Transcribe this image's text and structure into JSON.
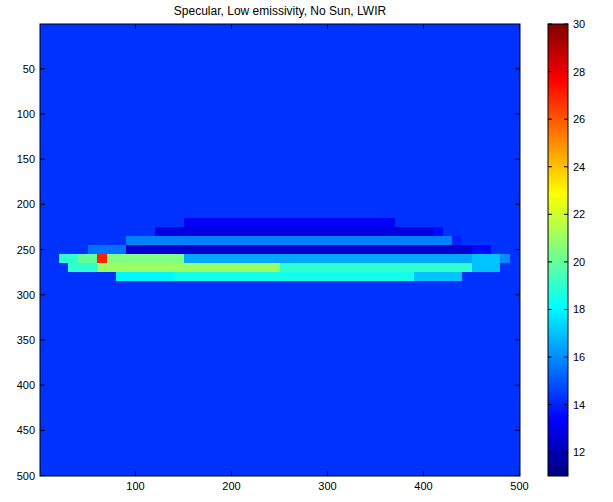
{
  "chart_data": {
    "type": "heatmap",
    "title": "Specular, Low emissivity, No Sun, LWIR",
    "x_edges": [
      0.5,
      10,
      20,
      30,
      40,
      50,
      60,
      70,
      80,
      90,
      100,
      110,
      120,
      130,
      140,
      150,
      160,
      170,
      180,
      190,
      200,
      210,
      220,
      230,
      240,
      250,
      260,
      270,
      280,
      290,
      300,
      310,
      320,
      330,
      340,
      350,
      360,
      370,
      380,
      390,
      400,
      410,
      420,
      430,
      440,
      450,
      460,
      470,
      480,
      490,
      500.5
    ],
    "y_edges": [
      0.5,
      215,
      225,
      235,
      245,
      255,
      265,
      275,
      285,
      500.5
    ],
    "cells": [
      [
        14.3,
        14.3,
        14.3,
        14.3,
        14.3,
        14.3,
        14.3,
        14.3,
        14.3,
        14.3,
        14.3,
        14.3,
        14.3,
        14.3,
        14.3,
        14.3,
        14.3,
        14.3,
        14.3,
        14.3,
        14.3,
        14.3,
        14.3,
        14.3,
        14.3,
        14.3,
        14.3,
        14.3,
        14.3,
        14.3,
        14.3,
        14.3,
        14.3,
        14.3,
        14.3,
        14.3,
        14.3,
        14.3,
        14.3,
        14.3,
        14.3,
        14.3,
        14.3,
        14.3,
        14.3,
        14.3,
        14.3,
        14.3,
        14.3,
        14.3
      ],
      [
        14.3,
        14.3,
        14.3,
        14.3,
        14.3,
        14.3,
        14.3,
        14.3,
        14.3,
        14.3,
        14.3,
        14.3,
        14.3,
        14.3,
        14.3,
        13.2,
        13.2,
        13.2,
        13.2,
        13.2,
        13.2,
        13.2,
        13.2,
        13.2,
        13.2,
        13.2,
        13.2,
        13.2,
        13.2,
        13.2,
        13.2,
        13.2,
        13.2,
        13.2,
        13.2,
        13.2,
        13.2,
        14.3,
        14.3,
        14.3,
        14.3,
        14.3,
        14.3,
        14.3,
        14.3,
        14.3,
        14.3,
        14.3,
        14.3,
        14.3
      ],
      [
        14.3,
        14.3,
        14.3,
        14.3,
        14.3,
        14.3,
        14.3,
        14.3,
        14.3,
        14.3,
        14.3,
        14.3,
        12.8,
        12.8,
        12.8,
        12.8,
        12.8,
        12.8,
        12.8,
        12.8,
        12.8,
        12.8,
        12.8,
        12.8,
        12.8,
        12.8,
        12.8,
        12.8,
        12.8,
        12.8,
        12.8,
        12.8,
        12.8,
        12.8,
        12.8,
        12.8,
        12.8,
        12.8,
        12.8,
        12.8,
        12.8,
        13.5,
        14.3,
        14.3,
        14.3,
        14.3,
        14.3,
        14.3,
        14.3,
        14.3
      ],
      [
        14.3,
        14.3,
        14.3,
        14.3,
        14.3,
        14.3,
        14.3,
        14.3,
        14.3,
        15.8,
        15.8,
        15.8,
        15.8,
        15.8,
        15.8,
        15.8,
        15.8,
        15.8,
        15.8,
        15.8,
        15.8,
        15.8,
        15.8,
        15.8,
        15.8,
        15.8,
        15.8,
        15.8,
        15.8,
        15.8,
        15.8,
        15.8,
        15.8,
        15.8,
        15.8,
        15.8,
        15.8,
        15.8,
        15.8,
        15.8,
        15.8,
        15.8,
        15.8,
        14.0,
        14.3,
        14.3,
        14.3,
        14.3,
        14.3,
        14.3
      ],
      [
        14.3,
        14.3,
        14.3,
        14.3,
        14.3,
        15.5,
        15.5,
        15.5,
        15.5,
        12.5,
        12.5,
        12.5,
        12.5,
        12.5,
        12.5,
        12.5,
        12.5,
        12.5,
        12.5,
        12.5,
        12.5,
        12.5,
        12.5,
        12.5,
        12.5,
        12.5,
        12.5,
        12.5,
        12.5,
        12.5,
        12.5,
        12.5,
        12.5,
        12.5,
        12.5,
        12.5,
        12.5,
        12.5,
        12.5,
        12.5,
        12.5,
        12.5,
        12.5,
        12.5,
        12.5,
        13.5,
        13.5,
        14.3,
        14.3,
        14.3
      ],
      [
        14.3,
        14.3,
        19,
        19,
        20,
        20,
        27,
        20.5,
        20.5,
        20.5,
        20.5,
        20.5,
        20.5,
        20.5,
        20.5,
        16.5,
        16.5,
        16.5,
        16.5,
        16.5,
        16.5,
        16.5,
        16.5,
        16.5,
        16.5,
        16.5,
        16.5,
        16.5,
        16.5,
        16.5,
        16.5,
        16.5,
        16.5,
        16.5,
        16.5,
        16.5,
        16.5,
        16.5,
        16.5,
        16.5,
        16.5,
        16.5,
        16.5,
        16.5,
        16.5,
        17,
        17,
        17,
        16,
        14.3
      ],
      [
        14.3,
        14.3,
        14.3,
        19,
        19,
        19,
        21,
        21,
        21,
        21,
        21,
        21,
        21,
        21,
        21,
        21,
        21,
        21,
        21,
        21,
        21,
        21,
        21,
        21,
        21,
        19,
        19,
        19,
        19,
        19,
        19,
        19,
        19,
        19,
        19,
        19,
        19,
        19,
        19,
        19,
        19,
        19,
        19,
        19,
        19,
        17,
        17,
        17,
        14.3,
        14.3
      ],
      [
        14.3,
        14.3,
        14.3,
        14.3,
        14.3,
        14.3,
        14.3,
        14.3,
        18,
        18,
        18,
        18,
        18,
        18,
        18.5,
        18.5,
        18.5,
        18.5,
        18.5,
        18.5,
        18.5,
        18.5,
        18.5,
        18.5,
        18.5,
        18.5,
        18.5,
        18.5,
        18.5,
        18.5,
        18.5,
        18.5,
        18.5,
        18.5,
        18.5,
        18.5,
        18.5,
        18.5,
        18.5,
        17,
        17,
        17,
        17,
        17,
        14.3,
        14.3,
        14.3,
        14.3,
        14.3,
        14.3
      ],
      [
        14.3,
        14.3,
        14.3,
        14.3,
        14.3,
        14.3,
        14.3,
        14.3,
        14.3,
        14.3,
        14.3,
        14.3,
        14.3,
        14.3,
        14.3,
        14.3,
        14.3,
        14.3,
        14.3,
        14.3,
        14.3,
        14.3,
        14.3,
        14.3,
        14.3,
        14.3,
        14.3,
        14.3,
        14.3,
        14.3,
        14.3,
        14.3,
        14.3,
        14.3,
        14.3,
        14.3,
        14.3,
        14.3,
        14.3,
        14.3,
        14.3,
        14.3,
        14.3,
        14.3,
        14.3,
        14.3,
        14.3,
        14.3,
        14.3,
        14.3
      ]
    ],
    "xlim": [
      0.5,
      500.5
    ],
    "ylim": [
      0.5,
      500.5
    ],
    "xticks": [
      100,
      200,
      300,
      400,
      500
    ],
    "yticks": [
      50,
      100,
      150,
      200,
      250,
      300,
      350,
      400,
      450,
      500
    ],
    "colorbar_range": [
      11,
      30
    ],
    "colorbar_ticks": [
      12,
      14,
      16,
      18,
      20,
      22,
      24,
      26,
      28,
      30
    ]
  }
}
